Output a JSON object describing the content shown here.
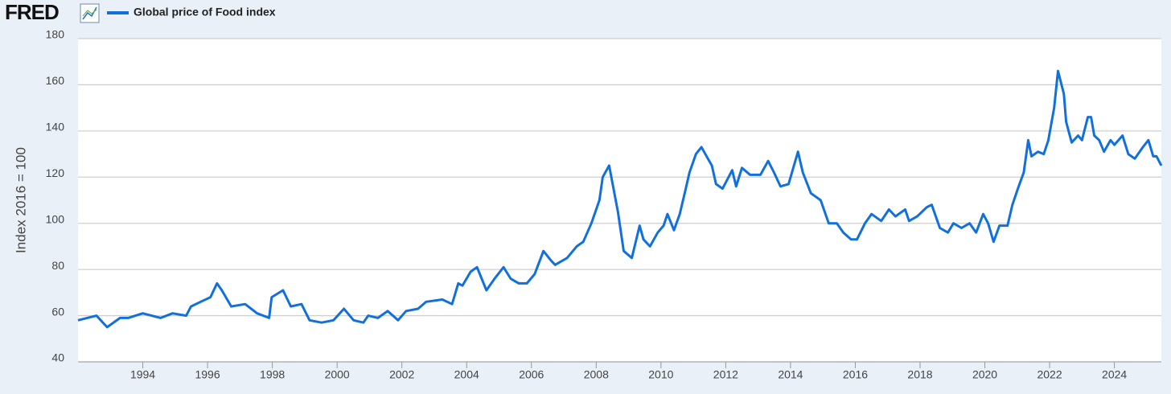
{
  "brand": "FRED",
  "chart_data": {
    "type": "line",
    "y_label": "Index 2016 = 100",
    "x": [
      1992.0,
      1992.57,
      1992.9,
      1993.3,
      1993.55,
      1994.0,
      1994.55,
      1994.92,
      1995.34,
      1995.49,
      1995.79,
      1996.09,
      1996.29,
      1996.44,
      1996.73,
      1997.16,
      1997.53,
      1997.9,
      1997.98,
      1998.33,
      1998.57,
      1998.9,
      1999.15,
      1999.52,
      1999.89,
      2000.21,
      2000.51,
      2000.81,
      2000.96,
      2001.26,
      2001.56,
      2001.88,
      2002.13,
      2002.5,
      2002.75,
      2003.25,
      2003.55,
      2003.74,
      2003.87,
      2004.12,
      2004.32,
      2004.61,
      2004.86,
      2005.14,
      2005.36,
      2005.61,
      2005.86,
      2006.1,
      2006.37,
      2006.6,
      2006.73,
      2007.1,
      2007.4,
      2007.6,
      2007.85,
      2008.1,
      2008.2,
      2008.4,
      2008.67,
      2008.85,
      2009.1,
      2009.34,
      2009.46,
      2009.66,
      2009.9,
      2010.08,
      2010.2,
      2010.4,
      2010.58,
      2010.75,
      2010.88,
      2011.08,
      2011.25,
      2011.45,
      2011.57,
      2011.7,
      2011.9,
      2012.2,
      2012.32,
      2012.5,
      2012.75,
      2013.07,
      2013.31,
      2013.49,
      2013.69,
      2013.94,
      2014.23,
      2014.38,
      2014.63,
      2014.93,
      2015.18,
      2015.43,
      2015.63,
      2015.87,
      2016.05,
      2016.3,
      2016.5,
      2016.8,
      2017.04,
      2017.24,
      2017.54,
      2017.66,
      2017.91,
      2018.21,
      2018.36,
      2018.61,
      2018.86,
      2019.03,
      2019.28,
      2019.53,
      2019.73,
      2019.95,
      2020.1,
      2020.27,
      2020.45,
      2020.7,
      2020.85,
      2021.02,
      2021.2,
      2021.34,
      2021.44,
      2021.64,
      2021.82,
      2021.96,
      2022.14,
      2022.26,
      2022.44,
      2022.51,
      2022.68,
      2022.88,
      2023.0,
      2023.18,
      2023.28,
      2023.38,
      2023.53,
      2023.68,
      2023.88,
      2024.0,
      2024.25,
      2024.43,
      2024.63,
      2024.88,
      2025.05,
      2025.2,
      2025.3,
      2025.45
    ],
    "series": [
      {
        "name": "Global price of Food index",
        "color": "#1170dc",
        "values": [
          58,
          60,
          55,
          59,
          59,
          61,
          59,
          61,
          60,
          64,
          66,
          68,
          74,
          71,
          64,
          65,
          61,
          59,
          68,
          71,
          64,
          65,
          58,
          57,
          58,
          63,
          58,
          57,
          60,
          59,
          62,
          58,
          62,
          63,
          66,
          67,
          65,
          74,
          73,
          79,
          81,
          71,
          76,
          81,
          76,
          74,
          74,
          78,
          88,
          84,
          82,
          85,
          90,
          92,
          100,
          110,
          120,
          125,
          105,
          88,
          85,
          99,
          93,
          90,
          96,
          99,
          104,
          97,
          104,
          114,
          122,
          130,
          133,
          128,
          125,
          117,
          115,
          123,
          116,
          124,
          121,
          121,
          127,
          122,
          116,
          117,
          131,
          122,
          113,
          110,
          100,
          100,
          96,
          93,
          93,
          100,
          104,
          101,
          106,
          103,
          106,
          101,
          103,
          107,
          108,
          98,
          96,
          100,
          98,
          100,
          96,
          104,
          100,
          92,
          99,
          99,
          108,
          115,
          122,
          136,
          129,
          131,
          130,
          136,
          150,
          166,
          156,
          144,
          135,
          138,
          136,
          146,
          146,
          138,
          136,
          131,
          136,
          134,
          138,
          130,
          128,
          133,
          136,
          129,
          129,
          125
        ]
      }
    ],
    "xlim": [
      1992.0,
      2025.45
    ],
    "xticks": [
      1994,
      1996,
      1998,
      2000,
      2002,
      2004,
      2006,
      2008,
      2010,
      2012,
      2014,
      2016,
      2018,
      2020,
      2022,
      2024
    ],
    "ylim": [
      40,
      180
    ],
    "yticks": [
      40,
      60,
      80,
      100,
      120,
      140,
      160,
      180
    ],
    "grid": true
  }
}
